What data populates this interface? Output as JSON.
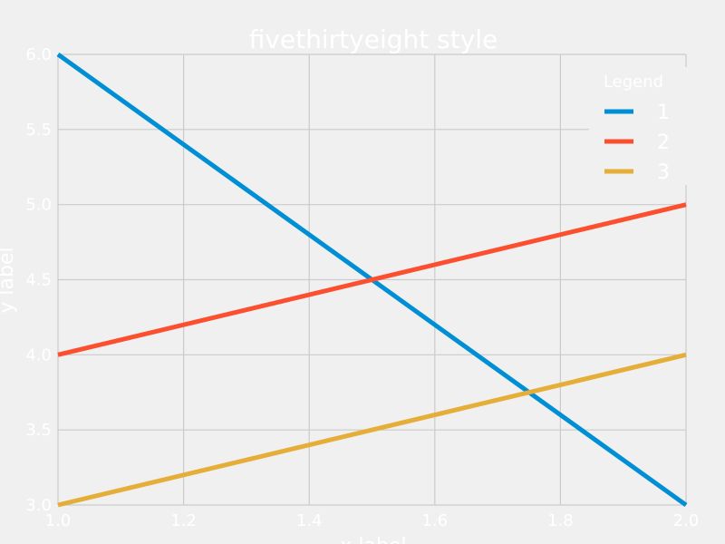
{
  "chart_data": {
    "type": "line",
    "title": "fivethirtyeight style",
    "xlabel": "x label",
    "ylabel": "y label",
    "xlim": [
      1.0,
      2.0
    ],
    "ylim": [
      3.0,
      6.0
    ],
    "x_ticks": [
      "1.0",
      "1.2",
      "1.4",
      "1.6",
      "1.8",
      "2.0"
    ],
    "y_ticks": [
      "3.0",
      "3.5",
      "4.0",
      "4.5",
      "5.0",
      "5.5",
      "6.0"
    ],
    "grid": true,
    "legend": {
      "title": "Legend",
      "placement": "top-right"
    },
    "series": [
      {
        "name": "1",
        "color": "#008fd5",
        "x": [
          1.0,
          2.0
        ],
        "y": [
          6.0,
          3.0
        ]
      },
      {
        "name": "2",
        "color": "#fc4f30",
        "x": [
          1.0,
          2.0
        ],
        "y": [
          4.0,
          5.0
        ]
      },
      {
        "name": "3",
        "color": "#e5ae38",
        "x": [
          1.0,
          2.0
        ],
        "y": [
          3.0,
          4.0
        ]
      }
    ]
  }
}
